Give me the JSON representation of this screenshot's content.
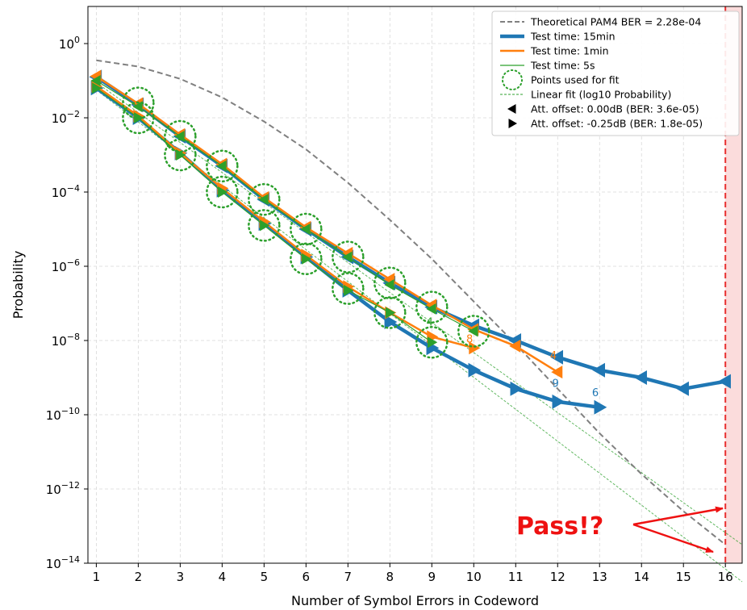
{
  "chart_data": {
    "type": "line",
    "title": "",
    "xlabel": "Number of Symbol Errors in Codeword",
    "ylabel": "Probability",
    "xlim": [
      0.8,
      16.4
    ],
    "ylim_log10": [
      -14,
      1
    ],
    "yscale": "log",
    "xticks": [
      1,
      2,
      3,
      4,
      5,
      6,
      7,
      8,
      9,
      10,
      11,
      12,
      13,
      14,
      15,
      16
    ],
    "xtick_labels": [
      "1",
      "2",
      "3",
      "4",
      "5",
      "6",
      "7",
      "8",
      "9",
      "10",
      "11",
      "12",
      "13",
      "14",
      "15",
      "16"
    ],
    "yticks_exp": [
      0,
      -2,
      -4,
      -6,
      -8,
      -10,
      -12,
      -14
    ],
    "ytick_base": "10",
    "grid": true,
    "legend_position": "top-right",
    "threshold_x": 16,
    "threshold_color": "#e83030",
    "colors": {
      "theory": "#808080",
      "t15min": "#1f77b4",
      "t1min": "#ff7f0e",
      "t5s": "#2ca02c",
      "annotation": "#ee1111"
    },
    "theory": {
      "x": [
        1,
        2,
        3,
        4,
        5,
        6,
        7,
        8,
        9,
        10,
        11,
        12,
        13,
        14,
        15,
        16
      ],
      "log10_y": [
        -0.45,
        -0.62,
        -0.95,
        -1.45,
        -2.1,
        -2.85,
        -3.75,
        -4.75,
        -5.8,
        -6.95,
        -8.1,
        -9.3,
        -10.5,
        -11.6,
        -12.6,
        -13.5
      ]
    },
    "fits": [
      {
        "x": [
          1,
          16.4
        ],
        "log10_y": [
          -1.05,
          -13.5
        ]
      },
      {
        "x": [
          1,
          16.4
        ],
        "log10_y": [
          -1.25,
          -14.5
        ]
      }
    ],
    "series": [
      {
        "name": "Test time: 15min",
        "offset": "left",
        "x": [
          1,
          2,
          3,
          4,
          5,
          6,
          7,
          8,
          9,
          10,
          11,
          12,
          13,
          14,
          15,
          16
        ],
        "log10_y": [
          -0.9,
          -1.65,
          -2.5,
          -3.3,
          -4.2,
          -5.0,
          -5.75,
          -6.45,
          -7.1,
          -7.6,
          -8.0,
          -8.45,
          -8.8,
          -9.0,
          -9.3,
          -9.1
        ]
      },
      {
        "name": "Test time: 15min",
        "offset": "right",
        "x": [
          1,
          2,
          3,
          4,
          5,
          6,
          7,
          8,
          9,
          10,
          11,
          12,
          13
        ],
        "log10_y": [
          -1.2,
          -2.0,
          -2.95,
          -3.95,
          -4.85,
          -5.75,
          -6.65,
          -7.5,
          -8.2,
          -8.8,
          -9.3,
          -9.65,
          -9.8
        ],
        "end_label": "6",
        "end_label_x": 12.9,
        "end_label_logy": -9.5,
        "mid_label": "9",
        "mid_label_x": 11.95,
        "mid_label_logy": -9.25
      },
      {
        "name": "Test time: 1min",
        "offset": "left",
        "x": [
          1,
          2,
          3,
          4,
          5,
          6,
          7,
          8,
          9,
          10,
          11,
          12
        ],
        "log10_y": [
          -0.88,
          -1.62,
          -2.45,
          -3.25,
          -4.15,
          -4.95,
          -5.65,
          -6.35,
          -7.05,
          -7.7,
          -8.15,
          -8.85
        ],
        "end_label": "4",
        "end_label_x": 11.9,
        "end_label_logy": -8.5
      },
      {
        "name": "Test time: 1min",
        "offset": "right",
        "x": [
          1,
          2,
          3,
          4,
          5,
          6,
          7,
          8,
          9,
          10
        ],
        "log10_y": [
          -1.15,
          -1.95,
          -2.95,
          -3.9,
          -4.8,
          -5.7,
          -6.55,
          -7.25,
          -7.9,
          -8.2
        ],
        "end_label": "8",
        "end_label_x": 9.9,
        "end_label_logy": -8.05
      },
      {
        "name": "Test time: 5s",
        "offset": "left",
        "x": [
          1,
          2,
          3,
          4,
          5,
          6,
          7,
          8,
          9,
          10
        ],
        "log10_y": [
          -1.0,
          -1.7,
          -2.5,
          -3.3,
          -4.2,
          -5.0,
          -5.75,
          -6.5,
          -7.15,
          -7.75
        ],
        "end_label": "4",
        "end_label_x": 8.95,
        "end_label_logy": -7.6
      },
      {
        "name": "Test time: 5s",
        "offset": "right",
        "x": [
          1,
          2,
          3,
          4,
          5,
          6,
          7,
          8,
          9
        ],
        "log10_y": [
          -1.2,
          -2.0,
          -3.0,
          -4.0,
          -4.9,
          -5.8,
          -6.65,
          -7.25,
          -8.05
        ]
      }
    ],
    "fit_points": {
      "x": [
        2,
        2,
        3,
        3,
        4,
        4,
        5,
        5,
        6,
        6,
        7,
        7,
        8,
        8,
        9,
        9,
        10
      ],
      "log10_y": [
        -1.6,
        -2.0,
        -2.5,
        -3.0,
        -3.3,
        -4.0,
        -4.2,
        -4.9,
        -5.0,
        -5.8,
        -5.75,
        -6.6,
        -6.45,
        -7.25,
        -7.1,
        -8.05,
        -7.75
      ]
    },
    "legend": [
      {
        "label": "Theoretical PAM4 BER = 2.28e-04",
        "style": "dashed",
        "color": "#808080"
      },
      {
        "label": "Test time: 15min",
        "style": "thick",
        "color": "#1f77b4"
      },
      {
        "label": "Test time: 1min",
        "style": "medium",
        "color": "#ff7f0e"
      },
      {
        "label": "Test time: 5s",
        "style": "thin",
        "color": "#2ca02c"
      },
      {
        "label": "Points used for fit",
        "style": "circle",
        "color": "#2ca02c"
      },
      {
        "label": "Linear fit (log10 Probability)",
        "style": "dotted",
        "color": "#2ca02c"
      },
      {
        "label": "Att. offset: 0.00dB (BER: 3.6e-05)",
        "style": "tri-left",
        "color": "#000000"
      },
      {
        "label": "Att. offset: -0.25dB (BER: 1.8e-05)",
        "style": "tri-right",
        "color": "#000000"
      }
    ],
    "annotation": "Pass!?"
  }
}
